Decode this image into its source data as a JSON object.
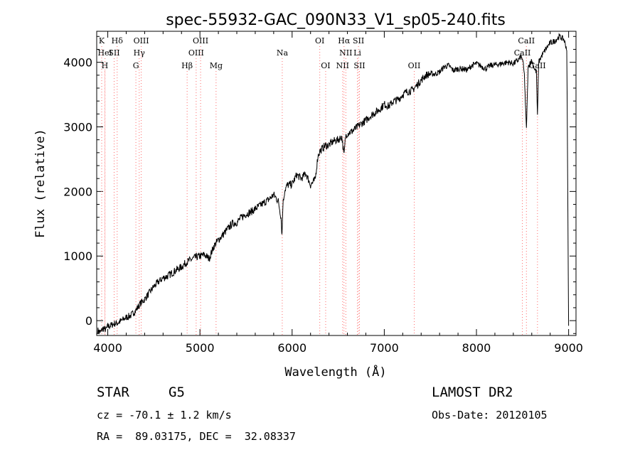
{
  "chart_data": {
    "type": "line",
    "title": "spec-55932-GAC_090N33_V1_sp05-240.fits",
    "xlabel": "Wavelength (Å)",
    "ylabel": "Flux (relative)",
    "xlim": [
      3880,
      9080
    ],
    "ylim": [
      -230,
      4480
    ],
    "xticks": [
      4000,
      5000,
      6000,
      7000,
      8000,
      9000
    ],
    "yticks": [
      0,
      1000,
      2000,
      3000,
      4000
    ],
    "grid": false,
    "line_color": "#000000",
    "marker_color": "#ff6a6a",
    "series": [
      {
        "x": [
          3890,
          3920,
          3950,
          3980,
          4000,
          4030,
          4060,
          4100,
          4150,
          4200,
          4250,
          4300,
          4350,
          4400,
          4450,
          4500,
          4550,
          4600,
          4650,
          4700,
          4750,
          4800,
          4850,
          4900,
          4950,
          5000,
          5050,
          5100,
          5150,
          5200,
          5250,
          5300,
          5350,
          5400,
          5450,
          5500,
          5550,
          5600,
          5650,
          5700,
          5750,
          5800,
          5850,
          5880,
          5890,
          5900,
          5920,
          5950,
          6000,
          6050,
          6100,
          6150,
          6200,
          6250,
          6280,
          6300,
          6350,
          6400,
          6450,
          6500,
          6540,
          6563,
          6580,
          6600,
          6650,
          6700,
          6750,
          6800,
          6850,
          6900,
          6950,
          7000,
          7050,
          7100,
          7150,
          7200,
          7250,
          7300,
          7350,
          7400,
          7450,
          7500,
          7550,
          7600,
          7650,
          7700,
          7750,
          7800,
          7850,
          7900,
          7950,
          8000,
          8050,
          8100,
          8150,
          8200,
          8250,
          8300,
          8350,
          8400,
          8450,
          8480,
          8500,
          8520,
          8542,
          8560,
          8580,
          8600,
          8630,
          8650,
          8662,
          8675,
          8700,
          8750,
          8800,
          8850,
          8900,
          8950,
          8980,
          9000
        ],
        "y": [
          -150,
          -180,
          -120,
          -140,
          -90,
          -80,
          -50,
          -40,
          0,
          50,
          80,
          150,
          260,
          330,
          430,
          530,
          600,
          660,
          690,
          740,
          790,
          830,
          900,
          940,
          980,
          1000,
          1020,
          960,
          1150,
          1250,
          1330,
          1420,
          1500,
          1520,
          1600,
          1650,
          1680,
          1730,
          1780,
          1830,
          1880,
          1950,
          1850,
          1600,
          1320,
          1800,
          2020,
          2100,
          2110,
          2260,
          2200,
          2280,
          2100,
          2180,
          2550,
          2620,
          2700,
          2720,
          2780,
          2800,
          2850,
          2550,
          2860,
          2900,
          2930,
          2990,
          3050,
          3100,
          3170,
          3220,
          3270,
          3350,
          3320,
          3400,
          3420,
          3500,
          3550,
          3560,
          3640,
          3720,
          3800,
          3820,
          3820,
          3850,
          3930,
          3950,
          3870,
          3900,
          3900,
          3880,
          3950,
          3980,
          3940,
          3900,
          3950,
          3960,
          3970,
          3990,
          4000,
          3980,
          4030,
          4080,
          4050,
          3800,
          2950,
          3900,
          4000,
          4020,
          3900,
          3850,
          3150,
          4000,
          4080,
          4200,
          4300,
          4330,
          4400,
          4350,
          4200,
          -80
        ]
      }
    ],
    "spectral_lines": [
      {
        "label": "K",
        "x": 3934,
        "row": 0
      },
      {
        "label": "HeI",
        "x": 3970,
        "row": 1
      },
      {
        "label": "H",
        "x": 3968,
        "row": 2
      },
      {
        "label": "Hδ",
        "x": 4102,
        "row": 0
      },
      {
        "label": "SII",
        "x": 4069,
        "row": 1
      },
      {
        "label": "OIII",
        "x": 4363,
        "row": 0
      },
      {
        "label": "Hγ",
        "x": 4341,
        "row": 1
      },
      {
        "label": "G",
        "x": 4305,
        "row": 2
      },
      {
        "label": "OIII",
        "x": 5007,
        "row": 0
      },
      {
        "label": "OIII",
        "x": 4959,
        "row": 1
      },
      {
        "label": "Hβ",
        "x": 4861,
        "row": 2
      },
      {
        "label": "Mg",
        "x": 5175,
        "row": 2
      },
      {
        "label": "Na",
        "x": 5893,
        "row": 1
      },
      {
        "label": "OI",
        "x": 6300,
        "row": 0
      },
      {
        "label": "OI",
        "x": 6364,
        "row": 2
      },
      {
        "label": "Hα",
        "x": 6563,
        "row": 0
      },
      {
        "label": "SII",
        "x": 6720,
        "row": 0
      },
      {
        "label": "NII",
        "x": 6583,
        "row": 1
      },
      {
        "label": "Li",
        "x": 6708,
        "row": 1
      },
      {
        "label": "NII",
        "x": 6548,
        "row": 2
      },
      {
        "label": "SII",
        "x": 6731,
        "row": 2
      },
      {
        "label": "OII",
        "x": 7325,
        "row": 2
      },
      {
        "label": "CaII",
        "x": 8542,
        "row": 0
      },
      {
        "label": "CaII",
        "x": 8498,
        "row": 1
      },
      {
        "label": "CaII",
        "x": 8662,
        "row": 2
      }
    ]
  },
  "info": {
    "class": "STAR",
    "subclass": "G5",
    "survey": "LAMOST DR2",
    "cz": "cz = -70.1 ± 1.2 km/s",
    "obs_date": "Obs-Date: 20120105",
    "coords": "RA =  89.03175, DEC =  32.08337"
  }
}
